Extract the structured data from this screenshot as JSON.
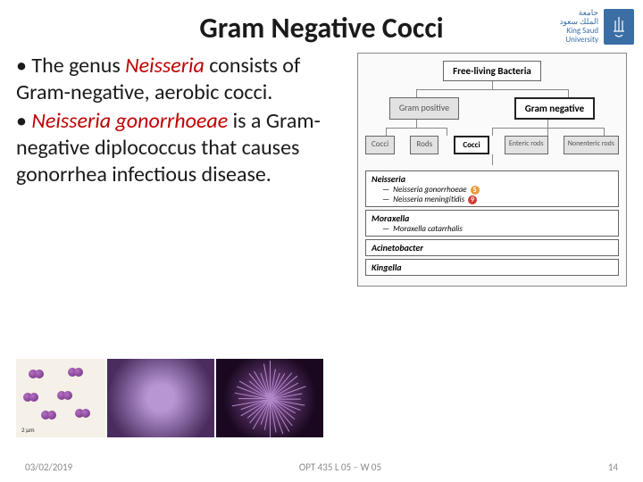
{
  "title": "Gram Negative Cocci",
  "logo": {
    "line1_ar": "جامعة",
    "line2_ar": "الملك سعود",
    "line1_en": "King Saud University"
  },
  "body": {
    "bullet": "•",
    "p1_a": "The genus ",
    "p1_b": "Neisseria",
    "p1_c": " consists of Gram-negative, aerobic cocci.",
    "p2_a": "Neisseria gonorrhoeae",
    "p2_b": " is a Gram-negative diplococcus that causes gonorrhea infectious disease."
  },
  "diagram": {
    "root": "Free-living Bacteria",
    "gp": "Gram positive",
    "gn": "Gram negative",
    "cocci_gp": "Cocci",
    "rods_gp": "Rods",
    "cocci_gn": "Cocci",
    "enteric": "Enteric rods",
    "nonenteric": "Nonenteric rods",
    "list": [
      {
        "genus": "Neisseria",
        "species": [
          {
            "name": "Neisseria gonorrhoeae",
            "badge": "S",
            "color": "orange"
          },
          {
            "name": "Neisseria meningitidis",
            "badge": "9",
            "color": "red"
          }
        ]
      },
      {
        "genus": "Moraxella",
        "species": [
          {
            "name": "Moraxella catarrhalis",
            "badge": "",
            "color": ""
          }
        ]
      },
      {
        "genus": "Acinetobacter",
        "species": []
      },
      {
        "genus": "Kingella",
        "species": []
      }
    ]
  },
  "images": {
    "scale": "2 μm"
  },
  "footer": {
    "date": "03/02/2019",
    "course": "OPT 435   L 05 – W 05",
    "page": "14"
  },
  "colors": {
    "title": "#1a1a1a",
    "red": "#c00000",
    "logo_blue": "#3a6ea5",
    "footer": "#888888"
  }
}
